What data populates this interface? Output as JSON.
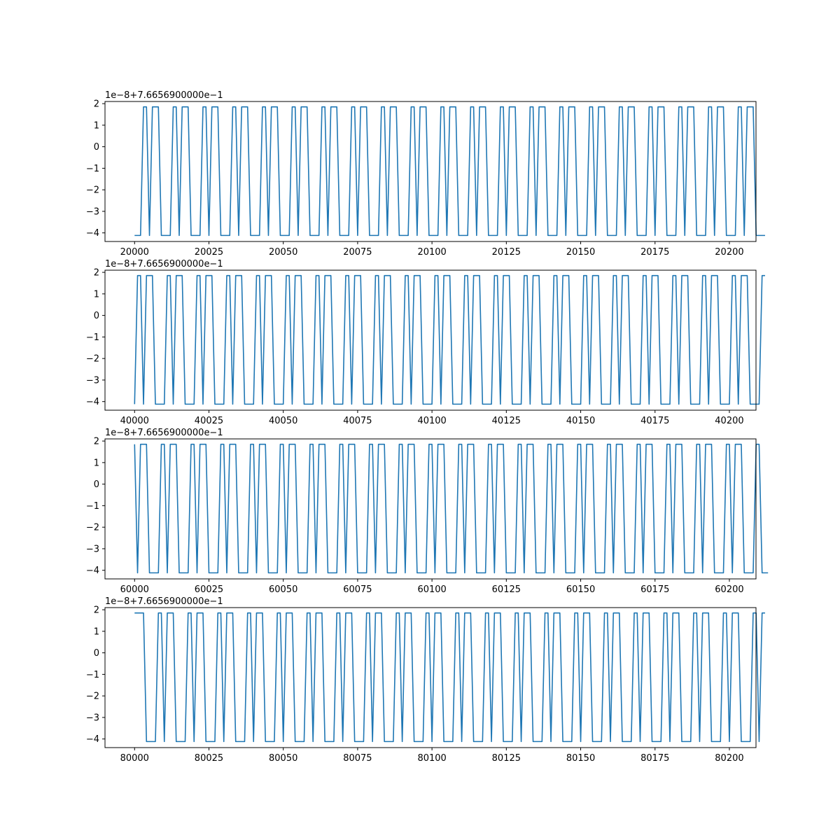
{
  "chart_data": [
    {
      "type": "line",
      "offset_text": "1e−8+7.6656900000e−1",
      "xlim": [
        19990.05,
        20208.95
      ],
      "ylim": [
        -4.4,
        2.1
      ],
      "xticks": [
        20000,
        20025,
        20050,
        20075,
        20100,
        20125,
        20150,
        20175,
        20200
      ],
      "yticks": [
        -4,
        -3,
        -2,
        -1,
        0,
        1,
        2
      ],
      "ytick_labels": [
        "−4",
        "−3",
        "−2",
        "−1",
        "0",
        "1",
        "2"
      ],
      "x_start": 20000,
      "hi": 1.85,
      "lo": -4.12,
      "states": "LLLHHLHHHLLLLHHLHHHLLLLHHLHHHLLLLHHLHHHLLLLHHLHHHLLLLHHLHHHLLLLHHLHHHLLLLHHLHHHLLLLHHLHHHLLLLHHLHHHLLLLHHLHHHLLLLHHLHHHLLLLHHLHHHLLLLHHLHHHLLLLHHLHHHLLLLHHLHHHLLLLHHLHHHLLLLHHLHHHLLLLHHLHHHLLLLHHLHHHLLLLHHLHHHLLLL"
    },
    {
      "type": "line",
      "offset_text": "1e−8+7.6656900000e−1",
      "xlim": [
        39990.05,
        40208.95
      ],
      "ylim": [
        -4.4,
        2.1
      ],
      "xticks": [
        40000,
        40025,
        40050,
        40075,
        40100,
        40125,
        40150,
        40175,
        40200
      ],
      "yticks": [
        -4,
        -3,
        -2,
        -1,
        0,
        1,
        2
      ],
      "ytick_labels": [
        "−4",
        "−3",
        "−2",
        "−1",
        "0",
        "1",
        "2"
      ],
      "x_start": 40000,
      "hi": 1.85,
      "lo": -4.12,
      "states": "LHHLHHHLLLLHHLHHHLLLLHHLHHHLLLLHHLHHHLLLLHHLHHHLLLLHHLHHHLLLLHHLHHHLLLLHHLHHHLLLLHHLHHHLLLLHHLHHHLLLLHHLHHHLLLLHHLHHHLLLLHHLHHHLLLLHHLHHHLLLLHHLHHHLLLLHHLHHHLLLLHHLHHHLLLLHHLHHHLLLLHHLHHHLLLLHHLHHHLLLLHHLHHHLLLLHH"
    },
    {
      "type": "line",
      "offset_text": "1e−8+7.6656900000e−1",
      "xlim": [
        59990.05,
        60208.95
      ],
      "ylim": [
        -4.4,
        2.1
      ],
      "xticks": [
        60000,
        60025,
        60050,
        60075,
        60100,
        60125,
        60150,
        60175,
        60200
      ],
      "yticks": [
        -4,
        -3,
        -2,
        -1,
        0,
        1,
        2
      ],
      "ytick_labels": [
        "−4",
        "−3",
        "−2",
        "−1",
        "0",
        "1",
        "2"
      ],
      "x_start": 60000,
      "hi": 1.85,
      "lo": -4.12,
      "states": "HLHHHLLLLHHLHHHLLLLHHLHHHLLLLHHLHHHLLLLHHLHHHLLLLHHLHHHLLLLHHLHHHLLLLHHLHHHLLLLHHLHHHLLLLHHLHHHLLLLHHLHHHLLLLHHLHHHLLLLHHLHHHLLLLHHLHHHLLLLHHLHHHLLLLHHLHHHLLLLHHLHHHLLLLHHLHHHLLLLHHLHHHLLLLHHLHHHLLLLHHLHHHLLLLHHLLL"
    },
    {
      "type": "line",
      "offset_text": "1e−8+7.6656900000e−1",
      "xlim": [
        79990.05,
        80208.95
      ],
      "ylim": [
        -4.4,
        2.1
      ],
      "xticks": [
        80000,
        80025,
        80050,
        80075,
        80100,
        80125,
        80150,
        80175,
        80200
      ],
      "yticks": [
        -4,
        -3,
        -2,
        -1,
        0,
        1,
        2
      ],
      "ytick_labels": [
        "−4",
        "−3",
        "−2",
        "−1",
        "0",
        "1",
        "2"
      ],
      "x_start": 80000,
      "hi": 1.85,
      "lo": -4.12,
      "states": "HHHHLLLLHHLHHHLLLLHHLHHHLLLLHHLHHHLLLLHHLHHHLLLLHHLHHHLLLLHHLHHHLLLLHHLHHHLLLLHHLHHHLLLLHHLHHHLLLLHHLHHHLLLLHHLHHHLLLLHHLHHHLLLLHHLHHHLLLLHHLHHHLLLLHHLHHHLLLLHHLHHHLLLLHHLHHHLLLLHHLHHHLLLLHHLHHHLLLLHHLHHHLLLLHHLHH"
    }
  ],
  "colors": {
    "series": "#1f77b4",
    "axes": "#000000",
    "background": "#ffffff"
  }
}
